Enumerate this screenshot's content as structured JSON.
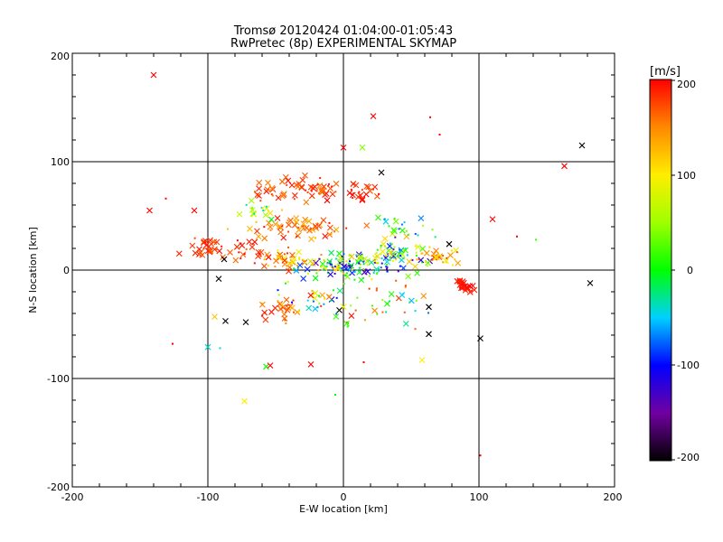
{
  "chart_data": {
    "type": "scatter",
    "title": "Tromsø 20120424 01:04:00-01:05:43",
    "subtitle": "RwPretec (8p) EXPERIMENTAL SKYMAP",
    "xlabel": "E-W location [km]",
    "ylabel": "N-S location [km]",
    "xlim": [
      -200,
      200
    ],
    "ylim": [
      -200,
      200
    ],
    "x_ticks": [
      "-200",
      "-100",
      "0",
      "100",
      "200"
    ],
    "y_ticks": [
      "-200",
      "-100",
      "0",
      "100",
      "200"
    ],
    "grid": true,
    "colorbar": {
      "label": "[m/s]",
      "range": [
        -200,
        200
      ],
      "ticks": [
        "200",
        "100",
        "0",
        "-100",
        "-200"
      ],
      "colormap": "black-purple-blue-cyan-green-yellow-orange-red"
    },
    "notable_points": [
      {
        "x": -140,
        "y": 180,
        "v": 200,
        "m": "x"
      },
      {
        "x": 22,
        "y": 142,
        "v": 200,
        "m": "x"
      },
      {
        "x": 64,
        "y": 141,
        "v": 200,
        "m": "dot"
      },
      {
        "x": 71,
        "y": 125,
        "v": 200,
        "m": "dot"
      },
      {
        "x": 0,
        "y": 113,
        "v": 200,
        "m": "x"
      },
      {
        "x": 14,
        "y": 113,
        "v": 40,
        "m": "x"
      },
      {
        "x": 176,
        "y": 115,
        "v": -200,
        "m": "x"
      },
      {
        "x": 163,
        "y": 96,
        "v": 200,
        "m": "x"
      },
      {
        "x": 28,
        "y": 90,
        "v": -200,
        "m": "x"
      },
      {
        "x": -143,
        "y": 55,
        "v": 200,
        "m": "x"
      },
      {
        "x": -131,
        "y": 66,
        "v": 200,
        "m": "dot"
      },
      {
        "x": -110,
        "y": 55,
        "v": 200,
        "m": "x"
      },
      {
        "x": 110,
        "y": 47,
        "v": 200,
        "m": "x"
      },
      {
        "x": 128,
        "y": 31,
        "v": 200,
        "m": "dot"
      },
      {
        "x": 142,
        "y": 28,
        "v": 20,
        "m": "dot"
      },
      {
        "x": -126,
        "y": -68,
        "v": 200,
        "m": "dot"
      },
      {
        "x": -100,
        "y": -71,
        "v": -40,
        "m": "x"
      },
      {
        "x": -95,
        "y": -43,
        "v": 120,
        "m": "x"
      },
      {
        "x": -91,
        "y": -72,
        "v": -40,
        "m": "dot"
      },
      {
        "x": -73,
        "y": -121,
        "v": 100,
        "m": "x"
      },
      {
        "x": -57,
        "y": -89,
        "v": 0,
        "m": "x"
      },
      {
        "x": -54,
        "y": -88,
        "v": 200,
        "m": "x"
      },
      {
        "x": -24,
        "y": -87,
        "v": 200,
        "m": "x"
      },
      {
        "x": -6,
        "y": -115,
        "v": 0,
        "m": "dot"
      },
      {
        "x": 15,
        "y": -85,
        "v": 200,
        "m": "dot"
      },
      {
        "x": 58,
        "y": -83,
        "v": 100,
        "m": "x"
      },
      {
        "x": 63,
        "y": -59,
        "v": -200,
        "m": "x"
      },
      {
        "x": 101,
        "y": -63,
        "v": -200,
        "m": "x"
      },
      {
        "x": 101,
        "y": -171,
        "v": 200,
        "m": "dot"
      },
      {
        "x": 182,
        "y": -12,
        "v": -200,
        "m": "x"
      },
      {
        "x": -92,
        "y": -8,
        "v": -200,
        "m": "x"
      },
      {
        "x": -88,
        "y": 10,
        "v": -200,
        "m": "x"
      },
      {
        "x": -87,
        "y": -47,
        "v": -200,
        "m": "x"
      },
      {
        "x": -72,
        "y": -48,
        "v": -200,
        "m": "x"
      },
      {
        "x": -3,
        "y": -37,
        "v": -200,
        "m": "x"
      },
      {
        "x": 63,
        "y": -34,
        "v": -200,
        "m": "x"
      },
      {
        "x": 78,
        "y": 24,
        "v": -200,
        "m": "x"
      }
    ],
    "clusters": [
      {
        "cx": -25,
        "cy": 75,
        "rx": 28,
        "ry": 12,
        "n": 45,
        "vmin": 150,
        "vmax": 200,
        "xfrac": 0.7
      },
      {
        "cx": 15,
        "cy": 70,
        "rx": 14,
        "ry": 8,
        "n": 20,
        "vmin": 170,
        "vmax": 200,
        "xfrac": 0.7
      },
      {
        "cx": -55,
        "cy": 75,
        "rx": 12,
        "ry": 10,
        "n": 15,
        "vmin": 150,
        "vmax": 200,
        "xfrac": 0.7
      },
      {
        "cx": -30,
        "cy": 38,
        "rx": 38,
        "ry": 10,
        "n": 55,
        "vmin": 120,
        "vmax": 200,
        "xfrac": 0.6
      },
      {
        "cx": -100,
        "cy": 20,
        "rx": 16,
        "ry": 10,
        "n": 32,
        "vmin": 160,
        "vmax": 200,
        "xfrac": 0.7
      },
      {
        "cx": -70,
        "cy": 18,
        "rx": 12,
        "ry": 12,
        "n": 20,
        "vmin": 160,
        "vmax": 200,
        "xfrac": 0.7
      },
      {
        "cx": -40,
        "cy": 10,
        "rx": 20,
        "ry": 10,
        "n": 40,
        "vmin": 80,
        "vmax": 200,
        "xfrac": 0.5
      },
      {
        "cx": 0,
        "cy": 5,
        "rx": 35,
        "ry": 12,
        "n": 130,
        "vmin": -150,
        "vmax": 130,
        "xfrac": 0.35
      },
      {
        "cx": 40,
        "cy": 15,
        "rx": 22,
        "ry": 14,
        "n": 70,
        "vmin": -150,
        "vmax": 130,
        "xfrac": 0.4
      },
      {
        "cx": 72,
        "cy": 12,
        "rx": 16,
        "ry": 8,
        "n": 30,
        "vmin": 80,
        "vmax": 200,
        "xfrac": 0.4
      },
      {
        "cx": 90,
        "cy": -15,
        "rx": 6,
        "ry": 6,
        "n": 25,
        "vmin": 185,
        "vmax": 200,
        "xfrac": 0.8
      },
      {
        "cx": -45,
        "cy": -38,
        "rx": 18,
        "ry": 12,
        "n": 28,
        "vmin": 120,
        "vmax": 200,
        "xfrac": 0.6
      },
      {
        "cx": -20,
        "cy": -25,
        "rx": 30,
        "ry": 18,
        "n": 40,
        "vmin": -100,
        "vmax": 200,
        "xfrac": 0.3
      },
      {
        "cx": 30,
        "cy": -30,
        "rx": 30,
        "ry": 22,
        "n": 35,
        "vmin": -80,
        "vmax": 200,
        "xfrac": 0.25
      },
      {
        "cx": -60,
        "cy": 55,
        "rx": 12,
        "ry": 8,
        "n": 18,
        "vmin": -50,
        "vmax": 120,
        "xfrac": 0.5
      },
      {
        "cx": 45,
        "cy": 40,
        "rx": 20,
        "ry": 12,
        "n": 20,
        "vmin": -100,
        "vmax": 80,
        "xfrac": 0.4
      }
    ]
  }
}
